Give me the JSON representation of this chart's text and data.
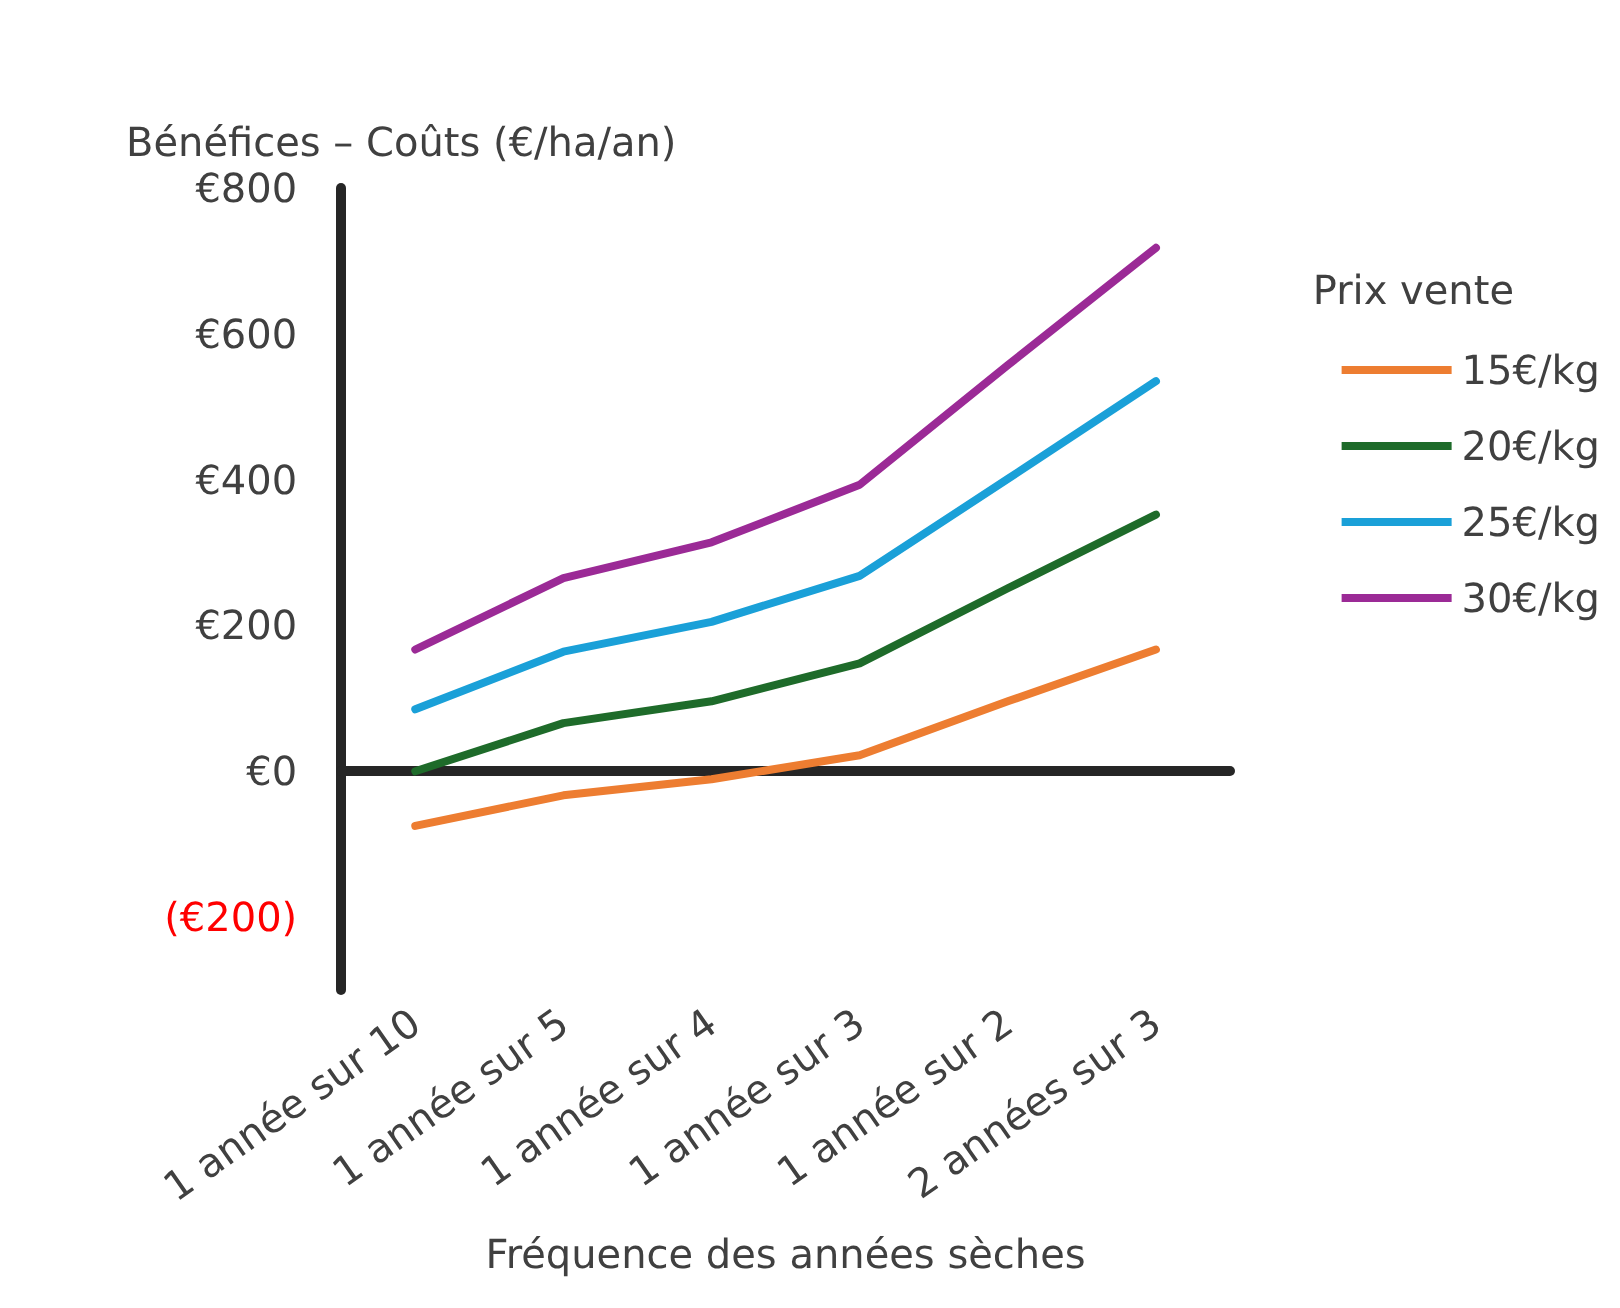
{
  "chart_data": {
    "type": "line",
    "xlabel": "Fréquence des années sèches",
    "ylabel": "Bénéfices – Coûts (€/ha/an)",
    "legend_title": "Prix vente",
    "categories": [
      "1 année sur 10",
      "1 année sur 5",
      "1 année sur 4",
      "1 année sur 3",
      "1 année sur 2",
      "2 années sur 3"
    ],
    "series": [
      {
        "name": "15€/kg",
        "color": "#ed7d31",
        "values": [
          -75,
          -33,
          -11,
          22,
          96,
          167
        ]
      },
      {
        "name": "20€/kg",
        "color": "#1e6b2a",
        "values": [
          0,
          66,
          96,
          148,
          251,
          352
        ]
      },
      {
        "name": "25€/kg",
        "color": "#1aa0d8",
        "values": [
          85,
          164,
          205,
          268,
          401,
          535
        ]
      },
      {
        "name": "30€/kg",
        "color": "#9b2a96",
        "values": [
          167,
          265,
          314,
          393,
          557,
          718
        ]
      }
    ],
    "ylim": [
      -300,
      800
    ],
    "yticks": [
      {
        "value": -200,
        "label": "(€200)"
      },
      {
        "value": 0,
        "label": "€0"
      },
      {
        "value": 200,
        "label": "€200"
      },
      {
        "value": 400,
        "label": "€400"
      },
      {
        "value": 600,
        "label": "€600"
      },
      {
        "value": 800,
        "label": "€800"
      }
    ],
    "legend": "right",
    "marker": "none",
    "line_style": "solid"
  }
}
